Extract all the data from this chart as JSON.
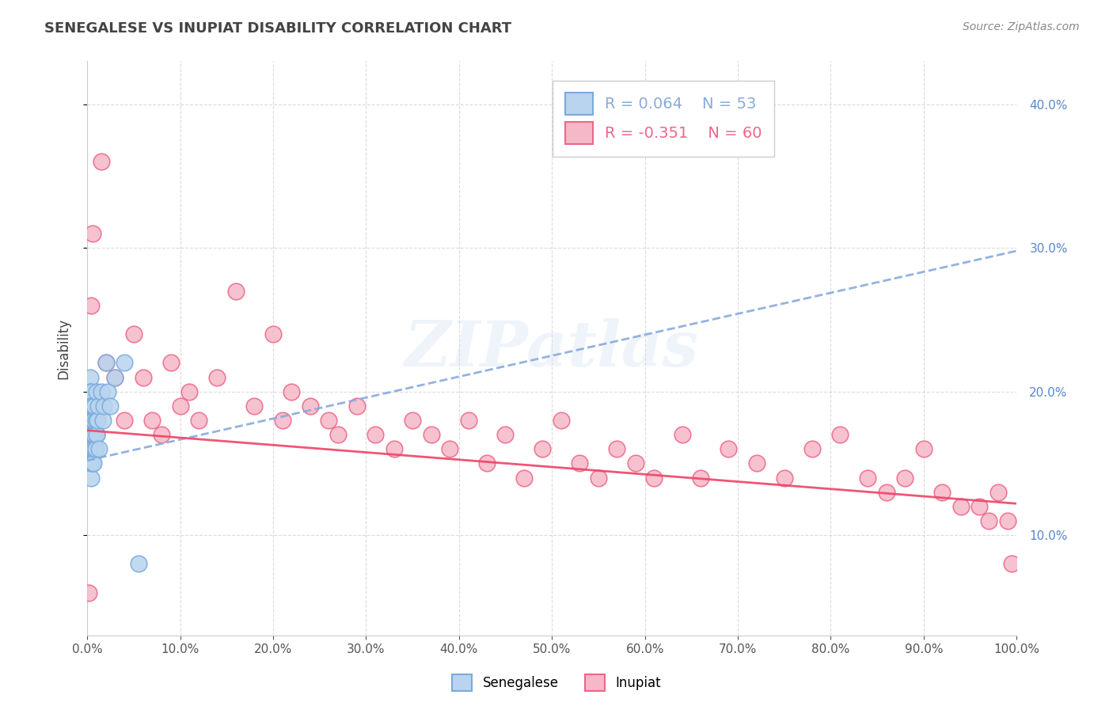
{
  "title": "SENEGALESE VS INUPIAT DISABILITY CORRELATION CHART",
  "ylabel": "Disability",
  "source": "Source: ZipAtlas.com",
  "senegalese_R": 0.064,
  "senegalese_N": 53,
  "inupiat_R": -0.351,
  "inupiat_N": 60,
  "senegalese_color": "#b8d4ee",
  "inupiat_color": "#f5b8c8",
  "senegalese_edge_color": "#7aaadd",
  "inupiat_edge_color": "#ee6688",
  "senegalese_trend_color": "#88aadd",
  "inupiat_trend_color": "#ee4466",
  "watermark": "ZIPatlas",
  "xmin": 0.0,
  "xmax": 1.0,
  "ymin": 0.03,
  "ymax": 0.43,
  "xticks": [
    0.0,
    0.1,
    0.2,
    0.3,
    0.4,
    0.5,
    0.6,
    0.7,
    0.8,
    0.9,
    1.0
  ],
  "yticks": [
    0.1,
    0.2,
    0.3,
    0.4
  ],
  "y_right_label_color": "#5588cc",
  "background_color": "#ffffff",
  "grid_color": "#cccccc",
  "senegalese_x": [
    0.0005,
    0.001,
    0.0012,
    0.0015,
    0.002,
    0.002,
    0.002,
    0.0022,
    0.0025,
    0.003,
    0.003,
    0.003,
    0.003,
    0.003,
    0.003,
    0.0035,
    0.004,
    0.004,
    0.004,
    0.004,
    0.004,
    0.004,
    0.0045,
    0.005,
    0.005,
    0.005,
    0.005,
    0.006,
    0.006,
    0.006,
    0.0065,
    0.007,
    0.007,
    0.007,
    0.008,
    0.008,
    0.008,
    0.009,
    0.009,
    0.01,
    0.01,
    0.011,
    0.012,
    0.013,
    0.015,
    0.017,
    0.018,
    0.02,
    0.022,
    0.025,
    0.03,
    0.04,
    0.055
  ],
  "senegalese_y": [
    0.19,
    0.16,
    0.2,
    0.18,
    0.2,
    0.19,
    0.17,
    0.18,
    0.16,
    0.21,
    0.2,
    0.18,
    0.17,
    0.16,
    0.15,
    0.19,
    0.2,
    0.19,
    0.17,
    0.16,
    0.15,
    0.14,
    0.18,
    0.18,
    0.17,
    0.16,
    0.15,
    0.19,
    0.17,
    0.15,
    0.18,
    0.18,
    0.16,
    0.15,
    0.19,
    0.17,
    0.16,
    0.18,
    0.16,
    0.2,
    0.17,
    0.18,
    0.19,
    0.16,
    0.2,
    0.18,
    0.19,
    0.22,
    0.2,
    0.19,
    0.21,
    0.22,
    0.08
  ],
  "inupiat_x": [
    0.002,
    0.004,
    0.006,
    0.01,
    0.015,
    0.02,
    0.03,
    0.04,
    0.05,
    0.06,
    0.07,
    0.08,
    0.09,
    0.1,
    0.11,
    0.12,
    0.14,
    0.16,
    0.18,
    0.2,
    0.21,
    0.22,
    0.24,
    0.26,
    0.27,
    0.29,
    0.31,
    0.33,
    0.35,
    0.37,
    0.39,
    0.41,
    0.43,
    0.45,
    0.47,
    0.49,
    0.51,
    0.53,
    0.55,
    0.57,
    0.59,
    0.61,
    0.64,
    0.66,
    0.69,
    0.72,
    0.75,
    0.78,
    0.81,
    0.84,
    0.86,
    0.88,
    0.9,
    0.92,
    0.94,
    0.96,
    0.97,
    0.98,
    0.99,
    0.995
  ],
  "inupiat_y": [
    0.06,
    0.26,
    0.31,
    0.17,
    0.36,
    0.22,
    0.21,
    0.18,
    0.24,
    0.21,
    0.18,
    0.17,
    0.22,
    0.19,
    0.2,
    0.18,
    0.21,
    0.27,
    0.19,
    0.24,
    0.18,
    0.2,
    0.19,
    0.18,
    0.17,
    0.19,
    0.17,
    0.16,
    0.18,
    0.17,
    0.16,
    0.18,
    0.15,
    0.17,
    0.14,
    0.16,
    0.18,
    0.15,
    0.14,
    0.16,
    0.15,
    0.14,
    0.17,
    0.14,
    0.16,
    0.15,
    0.14,
    0.16,
    0.17,
    0.14,
    0.13,
    0.14,
    0.16,
    0.13,
    0.12,
    0.12,
    0.11,
    0.13,
    0.11,
    0.08
  ],
  "sen_trend_start_y": 0.152,
  "sen_trend_end_y": 0.298,
  "inu_trend_start_y": 0.173,
  "inu_trend_end_y": 0.122
}
